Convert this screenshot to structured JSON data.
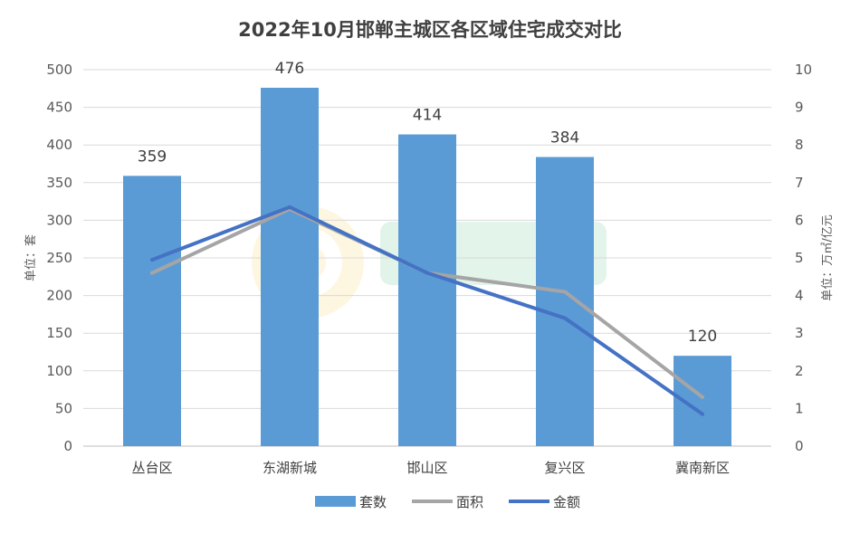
{
  "chart_data": {
    "type": "bar",
    "title": "2022年10月邯郸主城区各区域住宅成交对比",
    "categories": [
      "丛台区",
      "东湖新城",
      "邯山区",
      "复兴区",
      "冀南新区"
    ],
    "series": [
      {
        "name": "套数",
        "type": "bar",
        "axis": "left",
        "values": [
          359,
          476,
          414,
          384,
          120
        ],
        "color": "#5b9bd5",
        "show_labels": true
      },
      {
        "name": "面积",
        "type": "line",
        "axis": "right",
        "values": [
          4.6,
          6.3,
          4.6,
          4.1,
          1.3
        ],
        "color": "#a5a5a5"
      },
      {
        "name": "金额",
        "type": "line",
        "axis": "right",
        "values": [
          4.95,
          6.35,
          4.6,
          3.4,
          0.85
        ],
        "color": "#4472c4"
      }
    ],
    "y_left": {
      "label": "单位：套",
      "min": 0,
      "max": 500,
      "step": 50
    },
    "y_right": {
      "label": "单位：万㎡/亿元",
      "min": 0,
      "max": 10,
      "step": 1
    },
    "grid": true,
    "legend_position": "bottom"
  }
}
